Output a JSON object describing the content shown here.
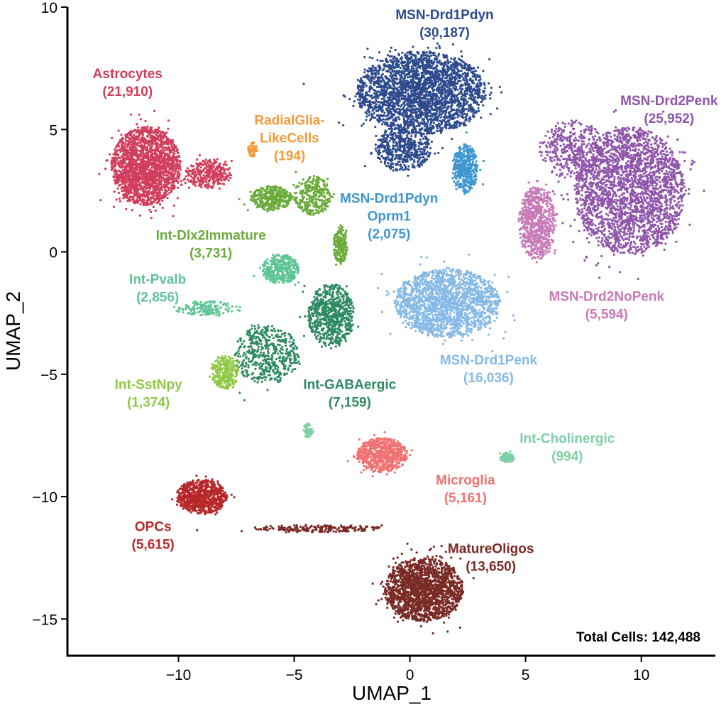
{
  "chart_data": {
    "type": "scatter",
    "title": "",
    "xlabel": "UMAP_1",
    "ylabel": "UMAP_2",
    "xlim": [
      -14.8,
      13.2
    ],
    "ylim": [
      -16.5,
      10
    ],
    "xticks": [
      -10,
      -5,
      0,
      5,
      10
    ],
    "yticks": [
      10,
      5,
      0,
      -5,
      -10,
      -15
    ],
    "xtick_labels": [
      "−10",
      "−5",
      "0",
      "5",
      "10"
    ],
    "ytick_labels": [
      "10",
      "5",
      "0",
      "−5",
      "−10",
      "−15"
    ],
    "total_cells": "Total Cells: 142,488",
    "clusters": [
      {
        "name": "MSN-Drd1Pdyn",
        "lines": [
          "MSN-Drd1Pdyn",
          "(30,187)"
        ],
        "count": 30187,
        "color": "#2c4a8c",
        "blobs": [
          [
            0.5,
            6.5,
            2.8,
            1.7,
            1,
            2600
          ],
          [
            -0.3,
            4.2,
            1.2,
            0.9,
            1,
            500
          ]
        ],
        "label_pos": [
          1.5,
          9.5
        ]
      },
      {
        "name": "MSN-Drd2Penk",
        "lines": [
          "MSN-Drd2Penk",
          "(25,952)"
        ],
        "count": 25952,
        "color": "#8e55a9",
        "blobs": [
          [
            9.5,
            2.5,
            2.4,
            2.6,
            1,
            2500
          ],
          [
            7.0,
            4.2,
            1.4,
            1.2,
            1,
            400
          ]
        ],
        "label_pos": [
          11.2,
          6.0
        ]
      },
      {
        "name": "MSN-Drd2NoPenk",
        "lines": [
          "MSN-Drd2NoPenk",
          "(5,594)"
        ],
        "count": 5594,
        "color": "#c77ab7",
        "blobs": [
          [
            5.5,
            1.2,
            0.8,
            1.5,
            1,
            700
          ]
        ],
        "label_pos": [
          8.5,
          -2.0
        ]
      },
      {
        "name": "MSN-Drd1Pdyn-Oprm1",
        "lines": [
          "MSN-Drd1Pdyn",
          "Oprm1",
          "(2,075)"
        ],
        "count": 2075,
        "color": "#3f96d0",
        "blobs": [
          [
            2.4,
            3.4,
            0.55,
            1.0,
            1,
            400
          ]
        ],
        "label_pos": [
          -0.9,
          2.0
        ]
      },
      {
        "name": "MSN-Drd1Penk",
        "lines": [
          "MSN-Drd1Penk",
          "(16,036)"
        ],
        "count": 16036,
        "color": "#86b9e6",
        "blobs": [
          [
            1.6,
            -2.1,
            2.3,
            1.4,
            1,
            1800
          ]
        ],
        "label_pos": [
          3.4,
          -4.6
        ]
      },
      {
        "name": "Astrocytes",
        "lines": [
          "Astrocytes",
          "(21,910)"
        ],
        "count": 21910,
        "color": "#d03e5b",
        "blobs": [
          [
            -11.4,
            3.5,
            1.5,
            1.6,
            1,
            2000
          ],
          [
            -8.7,
            3.2,
            1.0,
            0.6,
            1,
            300
          ]
        ],
        "label_pos": [
          -12.2,
          7.1
        ]
      },
      {
        "name": "RadialGlia-LikeCells",
        "lines": [
          "RadialGlia-",
          "LikeCells",
          "(194)"
        ],
        "count": 194,
        "color": "#f29b3a",
        "blobs": [
          [
            -6.8,
            4.2,
            0.2,
            0.3,
            1,
            60
          ]
        ],
        "label_pos": [
          -5.2,
          5.2
        ]
      },
      {
        "name": "Int-Dlx2Immature",
        "lines": [
          "Int-Dlx2Immature",
          "(3,731)"
        ],
        "count": 3731,
        "color": "#6aab3b",
        "blobs": [
          [
            -6.0,
            2.2,
            0.9,
            0.5,
            1,
            350
          ],
          [
            -4.2,
            2.3,
            0.8,
            0.8,
            1,
            300
          ],
          [
            -3.0,
            0.3,
            0.3,
            0.8,
            1,
            200
          ]
        ],
        "label_pos": [
          -8.6,
          0.5
        ]
      },
      {
        "name": "Int-Pvalb",
        "lines": [
          "Int-Pvalb",
          "(2,856)"
        ],
        "count": 2856,
        "color": "#5fc496",
        "blobs": [
          [
            -5.6,
            -0.7,
            0.8,
            0.6,
            1,
            400
          ],
          [
            -8.8,
            -2.3,
            1.2,
            0.3,
            1,
            150
          ]
        ],
        "label_pos": [
          -10.9,
          -1.3
        ]
      },
      {
        "name": "Int-GABAergic",
        "lines": [
          "Int-GABAergic",
          "(7,159)"
        ],
        "count": 7159,
        "color": "#2d8a62",
        "blobs": [
          [
            -3.4,
            -2.6,
            1.0,
            1.3,
            1,
            700
          ],
          [
            -6.2,
            -4.2,
            1.4,
            1.2,
            1,
            500
          ]
        ],
        "label_pos": [
          -2.6,
          -5.6
        ]
      },
      {
        "name": "Int-SstNpy",
        "lines": [
          "Int-SstNpy",
          "(1,374)"
        ],
        "count": 1374,
        "color": "#8fc844",
        "blobs": [
          [
            -8.0,
            -4.9,
            0.6,
            0.7,
            1,
            260
          ]
        ],
        "label_pos": [
          -11.3,
          -5.6
        ]
      },
      {
        "name": "Microglia",
        "lines": [
          "Microglia",
          "(5,161)"
        ],
        "count": 5161,
        "color": "#f07272",
        "blobs": [
          [
            -1.2,
            -8.3,
            1.1,
            0.7,
            1,
            700
          ]
        ],
        "label_pos": [
          2.4,
          -9.5
        ]
      },
      {
        "name": "Int-Cholinergic",
        "lines": [
          "Int-Cholinergic",
          "(994)"
        ],
        "count": 994,
        "color": "#7ecfa6",
        "blobs": [
          [
            4.2,
            -8.4,
            0.3,
            0.2,
            1,
            120
          ],
          [
            -4.4,
            -7.3,
            0.2,
            0.3,
            1,
            60
          ]
        ],
        "label_pos": [
          6.8,
          -7.8
        ]
      },
      {
        "name": "OPCs",
        "lines": [
          "OPCs",
          "(5,615)"
        ],
        "count": 5615,
        "color": "#b7282a",
        "blobs": [
          [
            -9.0,
            -10.0,
            1.1,
            0.7,
            1,
            800
          ]
        ],
        "label_pos": [
          -11.1,
          -11.4
        ]
      },
      {
        "name": "MatureOligos",
        "lines": [
          "MatureOligos",
          "(13,650)"
        ],
        "count": 13650,
        "color": "#7a2a25",
        "blobs": [
          [
            0.6,
            -13.8,
            1.7,
            1.3,
            1,
            1800
          ],
          [
            -4.0,
            -11.3,
            2.8,
            0.15,
            1,
            200
          ]
        ],
        "label_pos": [
          3.5,
          -12.3
        ]
      }
    ]
  }
}
